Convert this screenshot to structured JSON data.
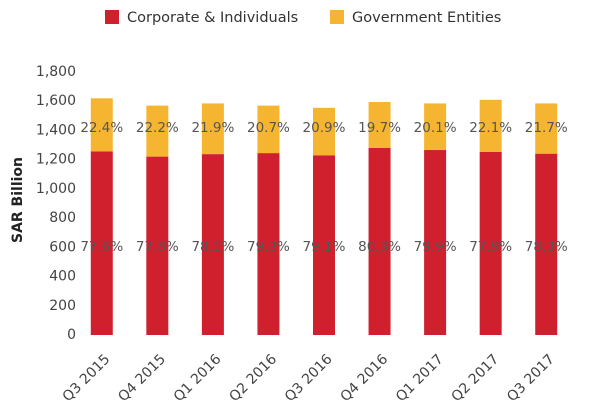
{
  "chart_data": {
    "type": "stacked_bar",
    "axis_label": "SAR Billion",
    "categories": [
      "Q3 2015",
      "Q4 2015",
      "Q1 2016",
      "Q2 2016",
      "Q3 2016",
      "Q4 2016",
      "Q1 2017",
      "Q2 2017",
      "Q3 2017"
    ],
    "series": [
      {
        "name": "Corporate & Individuals",
        "color": "#d0202e",
        "values": [
          1257,
          1221,
          1238,
          1245,
          1230,
          1281,
          1266,
          1254,
          1241
        ],
        "value_labels": [
          "77.6%",
          "77.8%",
          "78.1%",
          "79.3%",
          "79.1%",
          "80.3%",
          "79.9%",
          "77.9%",
          "78.3%"
        ]
      },
      {
        "name": "Government Entities",
        "color": "#f6b530",
        "values": [
          363,
          349,
          347,
          325,
          325,
          314,
          319,
          356,
          344
        ],
        "value_labels": [
          "22.4%",
          "22.2%",
          "21.9%",
          "20.7%",
          "20.9%",
          "19.7%",
          "20.1%",
          "22.1%",
          "21.7%"
        ]
      }
    ],
    "ylim": [
      0,
      1800
    ],
    "yticks": [
      0,
      {
        "value": 200,
        "label": "200"
      },
      {
        "value": 400,
        "label": "400"
      },
      {
        "value": 600,
        "label": "600"
      },
      {
        "value": 800,
        "label": "800"
      },
      {
        "value": 1000,
        "label": "1,000"
      },
      {
        "value": 1200,
        "label": "1,200"
      },
      {
        "value": 1400,
        "label": "1,400"
      },
      {
        "value": 1600,
        "label": "1,600"
      },
      {
        "value": 1800,
        "label": "1,800"
      }
    ],
    "grid": false
  }
}
